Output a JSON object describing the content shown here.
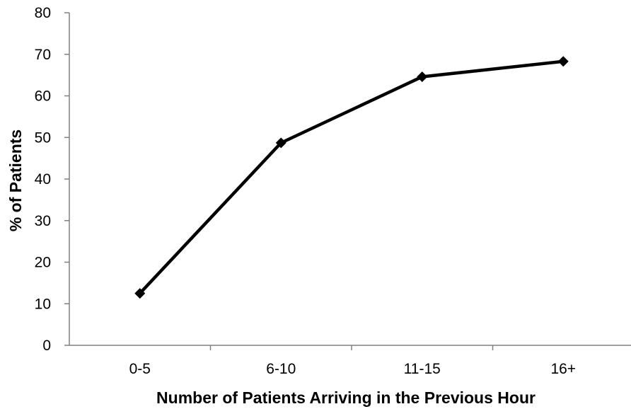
{
  "chart_data": {
    "type": "line",
    "title": "",
    "xlabel": "Number of Patients Arriving in the Previous Hour",
    "ylabel": "% of Patients",
    "categories": [
      "0-5",
      "6-10",
      "11-15",
      "16+"
    ],
    "series": [
      {
        "values": [
          12.5,
          48.7,
          64.6,
          68.3
        ]
      }
    ],
    "ylim": [
      0,
      80
    ],
    "yticks": [
      0,
      10,
      20,
      30,
      40,
      50,
      60,
      70,
      80
    ],
    "grid": false,
    "legend": "none",
    "marker": "diamond",
    "line_color": "#000000",
    "axis_color": "#808080"
  }
}
